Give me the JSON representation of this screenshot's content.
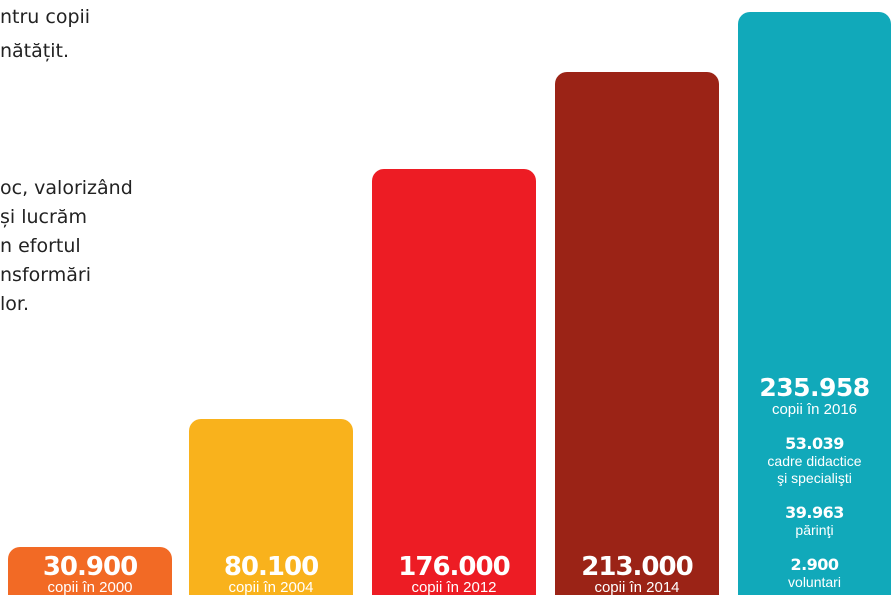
{
  "text_block": {
    "lines": [
      "ntru copii",
      "nătățit.",
      "oc, valorizând",
      " și lucrăm",
      "n efortul",
      "nsformări",
      "lor."
    ]
  },
  "chart_data": {
    "type": "bar",
    "categories": [
      "copii în 2000",
      "copii în 2004",
      "copii în 2012",
      "copii în 2014",
      "copii în 2016"
    ],
    "values": [
      30900,
      80100,
      176000,
      213000,
      235958
    ],
    "value_labels": [
      "30.900",
      "80.100",
      "176.000",
      "213.000",
      "235.958"
    ],
    "colors": [
      "#F26A25",
      "#F9B21C",
      "#ED1C24",
      "#9B2316",
      "#11A9BA"
    ],
    "title": "",
    "xlabel": "",
    "ylabel": ""
  },
  "stats": [
    {
      "value": "235.958",
      "lines": [
        "copii în 2016"
      ]
    },
    {
      "value": "53.039",
      "lines": [
        "cadre didactice",
        "şi specialişti"
      ]
    },
    {
      "value": "39.963",
      "lines": [
        "părinţi"
      ]
    },
    {
      "value": "2.900",
      "lines": [
        "voluntari"
      ]
    }
  ]
}
